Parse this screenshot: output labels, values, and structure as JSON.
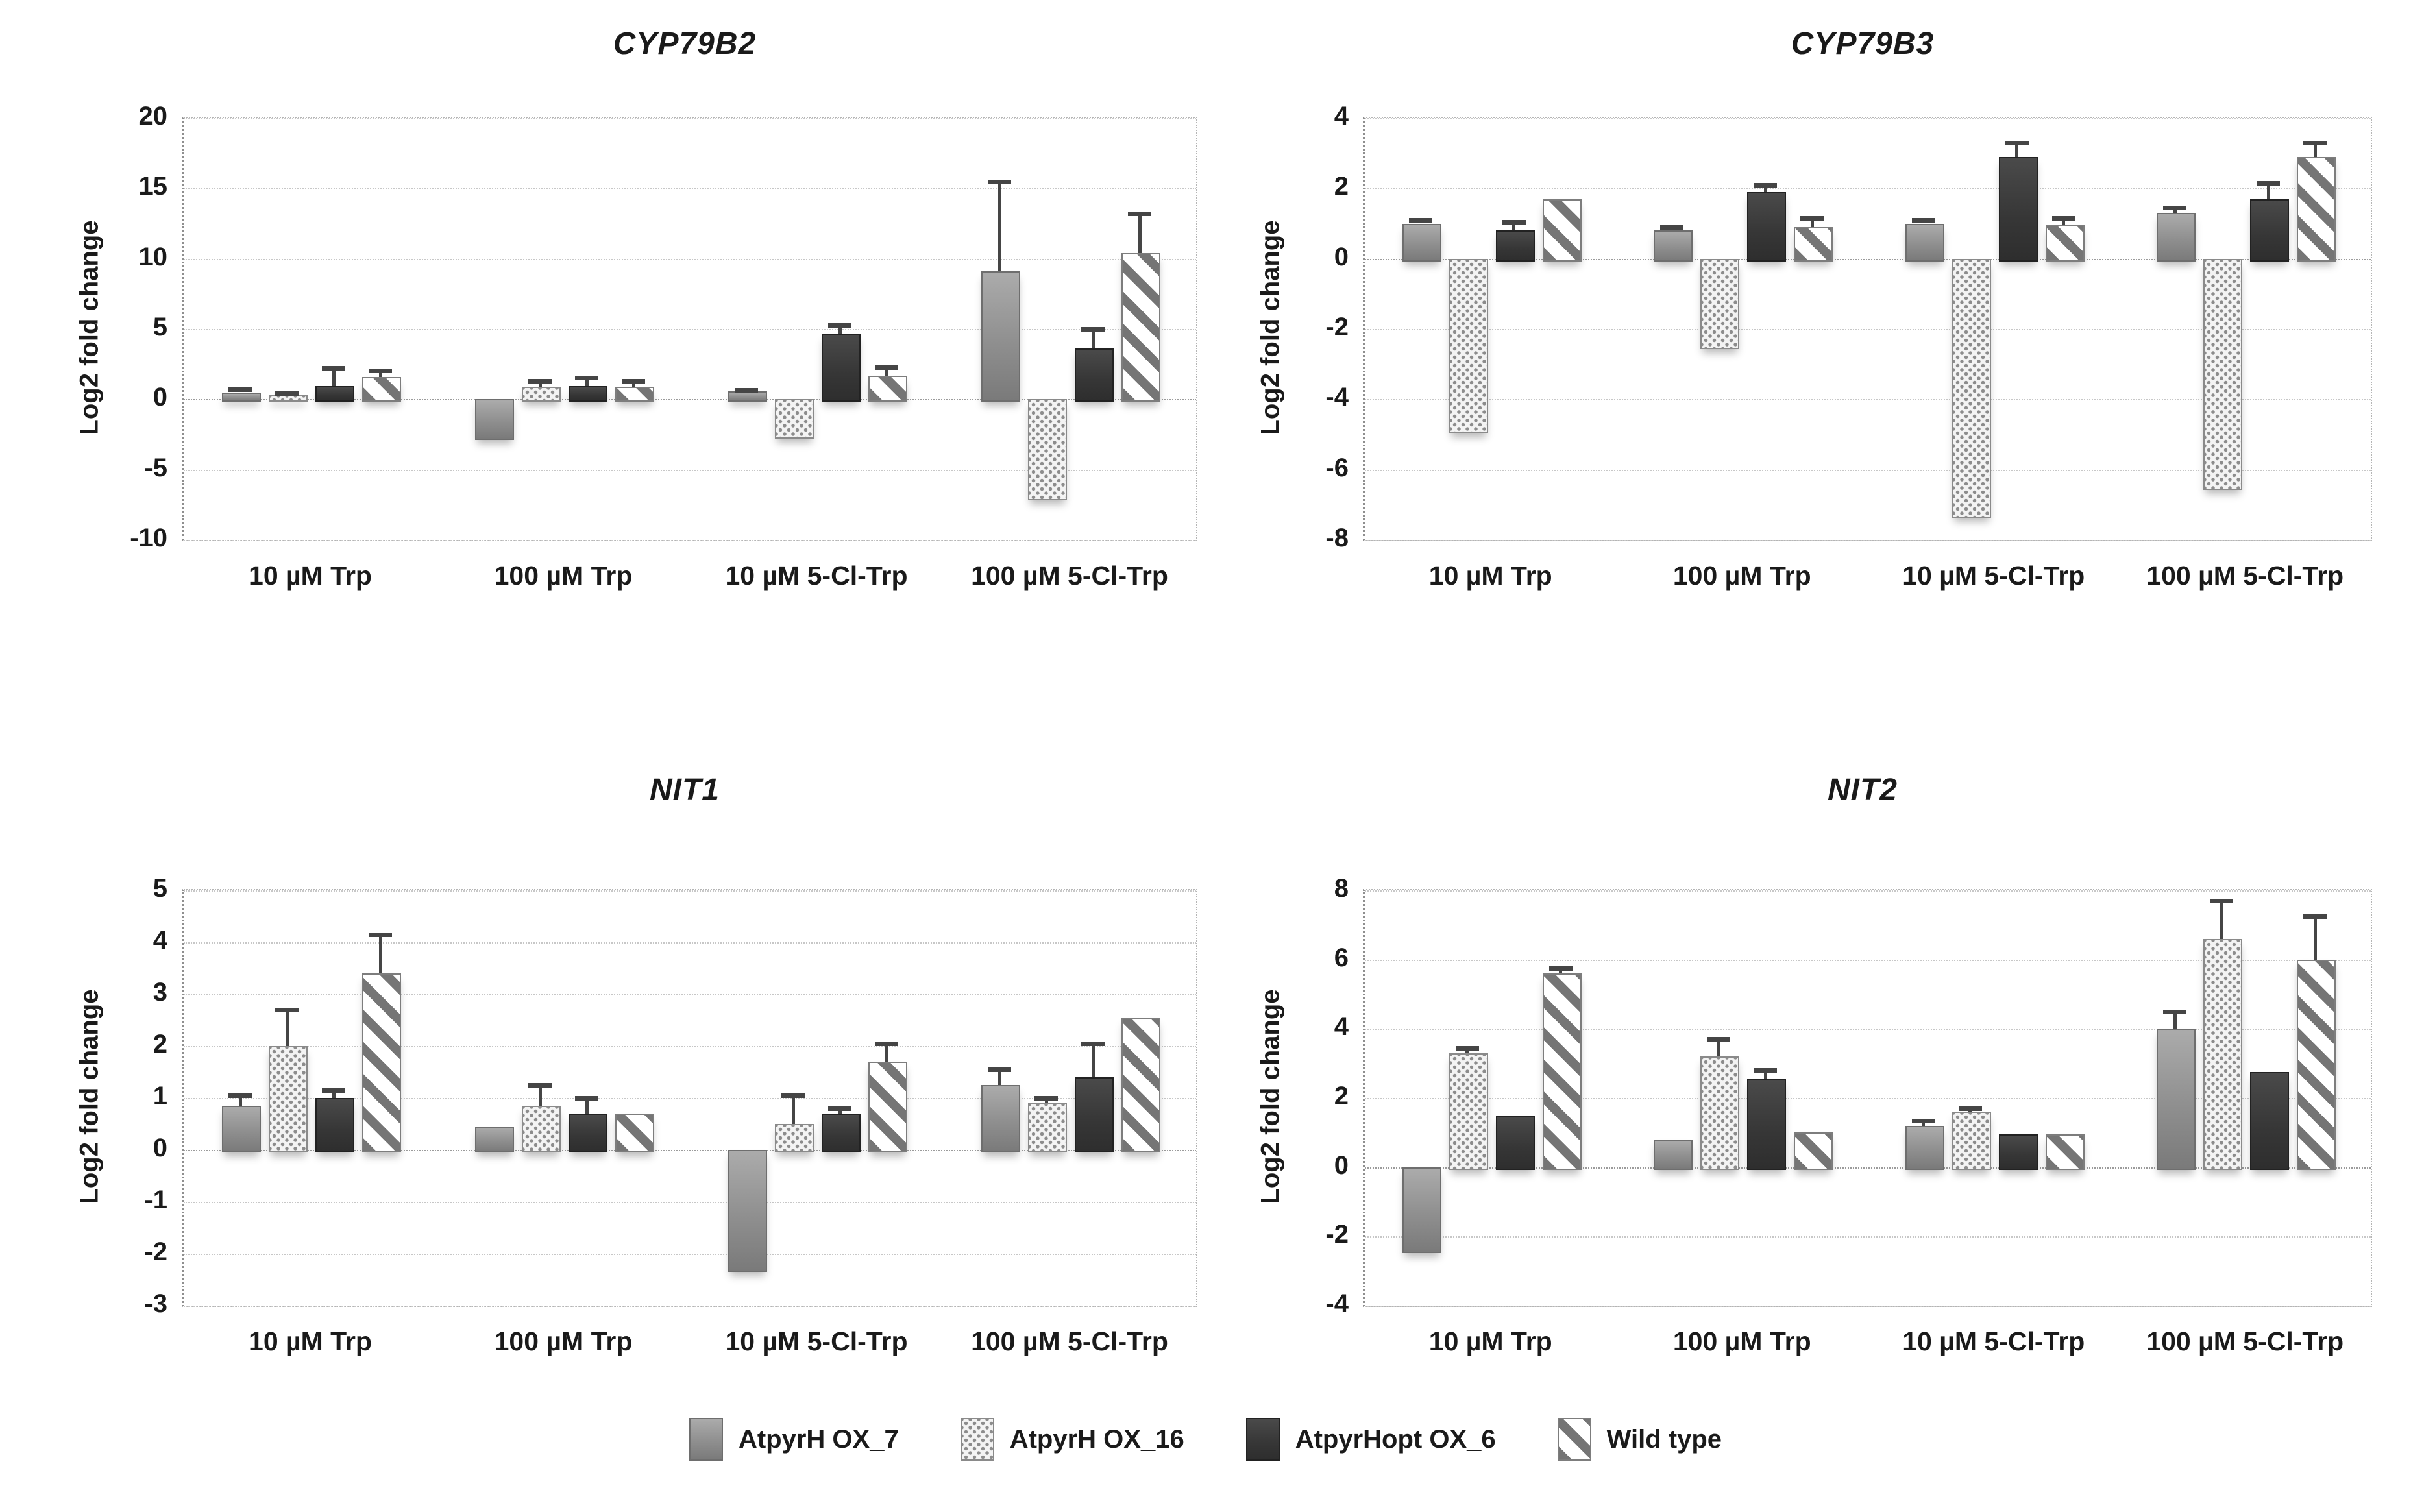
{
  "figure": {
    "y_axis_label": "Log2 fold change",
    "legend": [
      {
        "label": "AtpyrH OX_7",
        "pattern": "solid"
      },
      {
        "label": "AtpyrH OX_16",
        "pattern": "dots"
      },
      {
        "label": "AtpyrHopt OX_6",
        "pattern": "dark"
      },
      {
        "label": "Wild type",
        "pattern": "hatch"
      }
    ],
    "colors": {
      "solid_gray": "#8f8f8f",
      "dot_fill": "#f3f3f3",
      "dot_color": "#8c8c8c",
      "dark_gray": "#363636",
      "hatch_stripe": "#757575",
      "error_bar": "#454545",
      "gridline": "#c7c7c7"
    }
  },
  "chart_data": [
    {
      "type": "bar",
      "title": "CYP79B2",
      "ylabel": "Log2 fold change",
      "categories": [
        "10 µM Trp",
        "100 µM Trp",
        "10 µM 5-Cl-Trp",
        "100 µM 5-Cl-Trp"
      ],
      "ylim": [
        -10,
        20
      ],
      "ytick_step": 5,
      "grid": true,
      "legend_position": "bottom",
      "series": [
        {
          "name": "AtpyrH OX_7",
          "pattern": "solid",
          "values": [
            0.5,
            -2.7,
            0.55,
            9.1
          ],
          "errors": [
            0.2,
            0,
            0.1,
            6.4
          ]
        },
        {
          "name": "AtpyrH OX_16",
          "pattern": "dots",
          "values": [
            0.35,
            0.9,
            -2.6,
            -7.0
          ],
          "errors": [
            0.1,
            0.4,
            0,
            0
          ]
        },
        {
          "name": "AtpyrHopt OX_6",
          "pattern": "dark",
          "values": [
            0.95,
            0.95,
            4.7,
            3.6
          ],
          "errors": [
            1.3,
            0.6,
            0.6,
            1.4
          ]
        },
        {
          "name": "Wild type",
          "pattern": "hatch",
          "values": [
            1.6,
            0.9,
            1.7,
            10.4
          ],
          "errors": [
            0.45,
            0.4,
            0.6,
            2.8
          ]
        }
      ]
    },
    {
      "type": "bar",
      "title": "CYP79B3",
      "ylabel": "Log2 fold change",
      "categories": [
        "10 µM Trp",
        "100 µM Trp",
        "10 µM 5-Cl-Trp",
        "100 µM 5-Cl-Trp"
      ],
      "ylim": [
        -8,
        4
      ],
      "ytick_step": 2,
      "grid": true,
      "legend_position": "bottom",
      "series": [
        {
          "name": "AtpyrH OX_7",
          "pattern": "solid",
          "values": [
            1.0,
            0.8,
            1.0,
            1.3
          ],
          "errors": [
            0.1,
            0.1,
            0.1,
            0.15
          ]
        },
        {
          "name": "AtpyrH OX_16",
          "pattern": "dots",
          "values": [
            -4.9,
            -2.5,
            -7.3,
            -6.5
          ],
          "errors": [
            0,
            0,
            0,
            0
          ]
        },
        {
          "name": "AtpyrHopt OX_6",
          "pattern": "dark",
          "values": [
            0.8,
            1.9,
            2.9,
            1.7
          ],
          "errors": [
            0.25,
            0.2,
            0.4,
            0.45
          ]
        },
        {
          "name": "Wild type",
          "pattern": "hatch",
          "values": [
            1.7,
            0.9,
            0.95,
            2.9
          ],
          "errors": [
            0,
            0.25,
            0.2,
            0.4
          ]
        }
      ]
    },
    {
      "type": "bar",
      "title": "NIT1",
      "ylabel": "Log2 fold change",
      "categories": [
        "10 µM Trp",
        "100 µM Trp",
        "10 µM 5-Cl-Trp",
        "100 µM 5-Cl-Trp"
      ],
      "ylim": [
        -3,
        5
      ],
      "ytick_step": 1,
      "grid": true,
      "legend_position": "bottom",
      "series": [
        {
          "name": "AtpyrH OX_7",
          "pattern": "solid",
          "values": [
            0.85,
            0.45,
            -2.3,
            1.25
          ],
          "errors": [
            0.2,
            0,
            0,
            0.3
          ]
        },
        {
          "name": "AtpyrH OX_16",
          "pattern": "dots",
          "values": [
            2.0,
            0.85,
            0.5,
            0.9
          ],
          "errors": [
            0.7,
            0.4,
            0.55,
            0.1
          ]
        },
        {
          "name": "AtpyrHopt OX_6",
          "pattern": "dark",
          "values": [
            1.0,
            0.7,
            0.7,
            1.4
          ],
          "errors": [
            0.15,
            0.3,
            0.1,
            0.65
          ]
        },
        {
          "name": "Wild type",
          "pattern": "hatch",
          "values": [
            3.4,
            0.7,
            1.7,
            2.55
          ],
          "errors": [
            0.75,
            0,
            0.35,
            0
          ]
        }
      ]
    },
    {
      "type": "bar",
      "title": "NIT2",
      "ylabel": "Log2 fold change",
      "categories": [
        "10 µM Trp",
        "100 µM Trp",
        "10 µM 5-Cl-Trp",
        "100 µM 5-Cl-Trp"
      ],
      "ylim": [
        -4,
        8
      ],
      "ytick_step": 2,
      "grid": true,
      "legend_position": "bottom",
      "series": [
        {
          "name": "AtpyrH OX_7",
          "pattern": "solid",
          "values": [
            -2.4,
            0.8,
            1.2,
            4.0
          ],
          "errors": [
            0,
            0,
            0.15,
            0.5
          ]
        },
        {
          "name": "AtpyrH OX_16",
          "pattern": "dots",
          "values": [
            3.3,
            3.2,
            1.6,
            6.6
          ],
          "errors": [
            0.15,
            0.5,
            0.1,
            1.1
          ]
        },
        {
          "name": "AtpyrHopt OX_6",
          "pattern": "dark",
          "values": [
            1.5,
            2.55,
            0.95,
            2.75
          ],
          "errors": [
            0,
            0.25,
            0,
            0
          ]
        },
        {
          "name": "Wild type",
          "pattern": "hatch",
          "values": [
            5.6,
            1.0,
            0.95,
            6.0
          ],
          "errors": [
            0.15,
            0,
            0,
            1.25
          ]
        }
      ]
    }
  ]
}
